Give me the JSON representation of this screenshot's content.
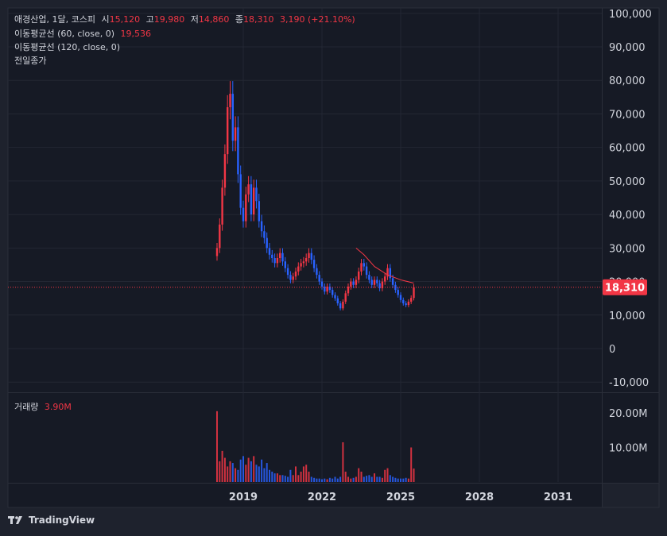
{
  "legend": {
    "symbol": "애경산업, 1달, 코스피",
    "open_label": "시",
    "open": "15,120",
    "high_label": "고",
    "high": "19,980",
    "low_label": "저",
    "low": "14,860",
    "close_label": "종",
    "close": "18,310",
    "change": "3,190 (+21.10%)",
    "ma60_label": "이동평균선 (60, close, 0)",
    "ma60_value": "19,536",
    "ma120_label": "이동평균선 (120, close, 0)",
    "prev_close_label": "전일종가"
  },
  "volume_legend": {
    "label": "거래량",
    "value": "3.90M"
  },
  "price_badge": "18,310",
  "brand": "TradingView",
  "colors": {
    "up": "#f23645",
    "down": "#2962ff",
    "ma60": "#f23645",
    "background": "#1e222d"
  },
  "chart_data": {
    "type": "candlestick",
    "x_ticks": [
      "2019",
      "2022",
      "2025",
      "2028",
      "2031"
    ],
    "y_ticks": [
      "100,000",
      "90,000",
      "80,000",
      "70,000",
      "60,000",
      "50,000",
      "40,000",
      "30,000",
      "20,000",
      "10,000",
      "0",
      "-10,000"
    ],
    "ylim": [
      -10000,
      100000
    ],
    "volume_ticks": [
      "20.00M",
      "10.00M"
    ],
    "last_close": 18310,
    "price_series": [
      {
        "t": 2018.0,
        "v": 30000
      },
      {
        "t": 2018.1,
        "v": 37000
      },
      {
        "t": 2018.2,
        "v": 48000
      },
      {
        "t": 2018.3,
        "v": 58000
      },
      {
        "t": 2018.4,
        "v": 72000
      },
      {
        "t": 2018.5,
        "v": 76000
      },
      {
        "t": 2018.6,
        "v": 62000
      },
      {
        "t": 2018.7,
        "v": 66000
      },
      {
        "t": 2018.8,
        "v": 52000
      },
      {
        "t": 2018.9,
        "v": 42000
      },
      {
        "t": 2019.0,
        "v": 38000
      },
      {
        "t": 2019.1,
        "v": 46000
      },
      {
        "t": 2019.2,
        "v": 49000
      },
      {
        "t": 2019.3,
        "v": 40000
      },
      {
        "t": 2019.4,
        "v": 48000
      },
      {
        "t": 2019.5,
        "v": 44000
      },
      {
        "t": 2019.6,
        "v": 38000
      },
      {
        "t": 2019.7,
        "v": 35000
      },
      {
        "t": 2019.8,
        "v": 33000
      },
      {
        "t": 2019.9,
        "v": 30000
      },
      {
        "t": 2020.0,
        "v": 28000
      },
      {
        "t": 2020.1,
        "v": 27000
      },
      {
        "t": 2020.2,
        "v": 25500
      },
      {
        "t": 2020.3,
        "v": 27000
      },
      {
        "t": 2020.4,
        "v": 28500
      },
      {
        "t": 2020.5,
        "v": 26000
      },
      {
        "t": 2020.6,
        "v": 24000
      },
      {
        "t": 2020.7,
        "v": 22000
      },
      {
        "t": 2020.8,
        "v": 20500
      },
      {
        "t": 2020.9,
        "v": 21500
      },
      {
        "t": 2021.0,
        "v": 23000
      },
      {
        "t": 2021.1,
        "v": 24500
      },
      {
        "t": 2021.2,
        "v": 25500
      },
      {
        "t": 2021.3,
        "v": 26000
      },
      {
        "t": 2021.4,
        "v": 27000
      },
      {
        "t": 2021.5,
        "v": 28500
      },
      {
        "t": 2021.6,
        "v": 26500
      },
      {
        "t": 2021.7,
        "v": 24000
      },
      {
        "t": 2021.8,
        "v": 22000
      },
      {
        "t": 2021.9,
        "v": 20000
      },
      {
        "t": 2022.0,
        "v": 18500
      },
      {
        "t": 2022.1,
        "v": 17000
      },
      {
        "t": 2022.2,
        "v": 18500
      },
      {
        "t": 2022.3,
        "v": 17500
      },
      {
        "t": 2022.4,
        "v": 16000
      },
      {
        "t": 2022.5,
        "v": 15000
      },
      {
        "t": 2022.6,
        "v": 13500
      },
      {
        "t": 2022.7,
        "v": 12000
      },
      {
        "t": 2022.8,
        "v": 14000
      },
      {
        "t": 2022.9,
        "v": 16500
      },
      {
        "t": 2023.0,
        "v": 18500
      },
      {
        "t": 2023.1,
        "v": 20000
      },
      {
        "t": 2023.2,
        "v": 19000
      },
      {
        "t": 2023.3,
        "v": 20500
      },
      {
        "t": 2023.4,
        "v": 23000
      },
      {
        "t": 2023.5,
        "v": 25500
      },
      {
        "t": 2023.6,
        "v": 24500
      },
      {
        "t": 2023.7,
        "v": 22000
      },
      {
        "t": 2023.8,
        "v": 20500
      },
      {
        "t": 2023.9,
        "v": 19000
      },
      {
        "t": 2024.0,
        "v": 20500
      },
      {
        "t": 2024.1,
        "v": 19500
      },
      {
        "t": 2024.2,
        "v": 18000
      },
      {
        "t": 2024.3,
        "v": 20000
      },
      {
        "t": 2024.4,
        "v": 21500
      },
      {
        "t": 2024.5,
        "v": 24000
      },
      {
        "t": 2024.6,
        "v": 21000
      },
      {
        "t": 2024.7,
        "v": 19000
      },
      {
        "t": 2024.8,
        "v": 17500
      },
      {
        "t": 2024.9,
        "v": 16000
      },
      {
        "t": 2025.0,
        "v": 14500
      },
      {
        "t": 2025.1,
        "v": 13500
      },
      {
        "t": 2025.2,
        "v": 13000
      },
      {
        "t": 2025.3,
        "v": 14000
      },
      {
        "t": 2025.4,
        "v": 15120
      },
      {
        "t": 2025.5,
        "v": 18310
      }
    ],
    "ma60": [
      {
        "t": 2023.3,
        "v": 30000
      },
      {
        "t": 2023.6,
        "v": 28000
      },
      {
        "t": 2024.0,
        "v": 24500
      },
      {
        "t": 2024.5,
        "v": 22000
      },
      {
        "t": 2025.0,
        "v": 20500
      },
      {
        "t": 2025.5,
        "v": 19536
      }
    ],
    "volume": [
      {
        "t": 2018.0,
        "v": 20.5
      },
      {
        "t": 2018.1,
        "v": 6.0
      },
      {
        "t": 2018.2,
        "v": 9.0
      },
      {
        "t": 2018.3,
        "v": 7.0
      },
      {
        "t": 2018.4,
        "v": 4.5
      },
      {
        "t": 2018.5,
        "v": 6.0
      },
      {
        "t": 2018.6,
        "v": 5.5
      },
      {
        "t": 2018.7,
        "v": 4.0
      },
      {
        "t": 2018.8,
        "v": 3.5
      },
      {
        "t": 2018.9,
        "v": 6.5
      },
      {
        "t": 2019.0,
        "v": 7.5
      },
      {
        "t": 2019.1,
        "v": 5.0
      },
      {
        "t": 2019.2,
        "v": 7.0
      },
      {
        "t": 2019.3,
        "v": 6.0
      },
      {
        "t": 2019.4,
        "v": 7.5
      },
      {
        "t": 2019.5,
        "v": 5.0
      },
      {
        "t": 2019.6,
        "v": 4.5
      },
      {
        "t": 2019.7,
        "v": 6.5
      },
      {
        "t": 2019.8,
        "v": 4.0
      },
      {
        "t": 2019.9,
        "v": 5.5
      },
      {
        "t": 2020.0,
        "v": 3.5
      },
      {
        "t": 2020.1,
        "v": 3.0
      },
      {
        "t": 2020.2,
        "v": 2.5
      },
      {
        "t": 2020.3,
        "v": 2.5
      },
      {
        "t": 2020.4,
        "v": 2.0
      },
      {
        "t": 2020.5,
        "v": 2.0
      },
      {
        "t": 2020.6,
        "v": 1.8
      },
      {
        "t": 2020.7,
        "v": 1.5
      },
      {
        "t": 2020.8,
        "v": 3.5
      },
      {
        "t": 2020.9,
        "v": 2.0
      },
      {
        "t": 2021.0,
        "v": 4.5
      },
      {
        "t": 2021.1,
        "v": 2.0
      },
      {
        "t": 2021.2,
        "v": 3.0
      },
      {
        "t": 2021.3,
        "v": 4.5
      },
      {
        "t": 2021.4,
        "v": 5.0
      },
      {
        "t": 2021.5,
        "v": 3.0
      },
      {
        "t": 2021.6,
        "v": 1.5
      },
      {
        "t": 2021.7,
        "v": 1.2
      },
      {
        "t": 2021.8,
        "v": 1.0
      },
      {
        "t": 2021.9,
        "v": 1.0
      },
      {
        "t": 2022.0,
        "v": 0.8
      },
      {
        "t": 2022.1,
        "v": 1.0
      },
      {
        "t": 2022.2,
        "v": 0.8
      },
      {
        "t": 2022.3,
        "v": 1.2
      },
      {
        "t": 2022.4,
        "v": 1.0
      },
      {
        "t": 2022.5,
        "v": 1.5
      },
      {
        "t": 2022.6,
        "v": 1.0
      },
      {
        "t": 2022.7,
        "v": 1.5
      },
      {
        "t": 2022.8,
        "v": 11.5
      },
      {
        "t": 2022.9,
        "v": 3.0
      },
      {
        "t": 2023.0,
        "v": 1.5
      },
      {
        "t": 2023.1,
        "v": 1.0
      },
      {
        "t": 2023.2,
        "v": 1.2
      },
      {
        "t": 2023.3,
        "v": 1.5
      },
      {
        "t": 2023.4,
        "v": 4.0
      },
      {
        "t": 2023.5,
        "v": 3.0
      },
      {
        "t": 2023.6,
        "v": 1.5
      },
      {
        "t": 2023.7,
        "v": 1.8
      },
      {
        "t": 2023.8,
        "v": 2.0
      },
      {
        "t": 2023.9,
        "v": 1.5
      },
      {
        "t": 2024.0,
        "v": 2.5
      },
      {
        "t": 2024.1,
        "v": 1.5
      },
      {
        "t": 2024.2,
        "v": 1.5
      },
      {
        "t": 2024.3,
        "v": 1.2
      },
      {
        "t": 2024.4,
        "v": 3.5
      },
      {
        "t": 2024.5,
        "v": 4.0
      },
      {
        "t": 2024.6,
        "v": 2.0
      },
      {
        "t": 2024.7,
        "v": 1.5
      },
      {
        "t": 2024.8,
        "v": 1.2
      },
      {
        "t": 2024.9,
        "v": 1.0
      },
      {
        "t": 2025.0,
        "v": 1.0
      },
      {
        "t": 2025.1,
        "v": 1.0
      },
      {
        "t": 2025.2,
        "v": 1.2
      },
      {
        "t": 2025.3,
        "v": 1.0
      },
      {
        "t": 2025.4,
        "v": 10.0
      },
      {
        "t": 2025.5,
        "v": 3.9
      }
    ]
  }
}
